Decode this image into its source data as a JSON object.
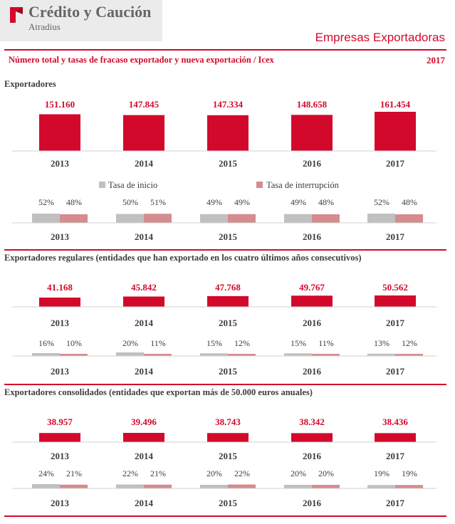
{
  "brand": {
    "name": "Crédito y Caución",
    "sub": "Atradius"
  },
  "page_title": "Empresas Exportadoras",
  "subtitle": "Número total  y tasas de fracaso exportador y nueva exportación / Icex",
  "year": "2017",
  "colors": {
    "accent": "#d3092b",
    "inicio": "#c0c0c0",
    "interrupcion": "#d68b8e",
    "text": "#3d3d3d"
  },
  "chart_data": [
    {
      "type": "bar",
      "title": "Exportadores",
      "categories": [
        "2013",
        "2014",
        "2015",
        "2016",
        "2017"
      ],
      "values": [
        151160,
        147845,
        147334,
        148658,
        161454
      ],
      "value_labels": [
        "151.160",
        "147.845",
        "147.334",
        "148.658",
        "161.454"
      ]
    },
    {
      "type": "bar",
      "categories": [
        "2013",
        "2014",
        "2015",
        "2016",
        "2017"
      ],
      "legend": "top",
      "series": [
        {
          "name": "Tasa de inicio",
          "values": [
            52,
            50,
            49,
            49,
            52
          ],
          "labels": [
            "52%",
            "50%",
            "49%",
            "49%",
            "52%"
          ]
        },
        {
          "name": "Tasa de interrupción",
          "values": [
            48,
            51,
            49,
            48,
            48
          ],
          "labels": [
            "48%",
            "51%",
            "49%",
            "48%",
            "48%"
          ]
        }
      ]
    },
    {
      "type": "bar",
      "title": "Exportadores regulares (entidades que han exportado en los cuatro últimos años consecutivos)",
      "categories": [
        "2013",
        "2014",
        "2015",
        "2016",
        "2017"
      ],
      "values": [
        41168,
        45842,
        47768,
        49767,
        50562
      ],
      "value_labels": [
        "41.168",
        "45.842",
        "47.768",
        "49.767",
        "50.562"
      ]
    },
    {
      "type": "bar",
      "categories": [
        "2013",
        "2014",
        "2015",
        "2016",
        "2017"
      ],
      "series": [
        {
          "values": [
            16,
            20,
            15,
            15,
            13
          ],
          "labels": [
            "16%",
            "20%",
            "15%",
            "15%",
            "13%"
          ]
        },
        {
          "values": [
            10,
            11,
            12,
            11,
            12
          ],
          "labels": [
            "10%",
            "11%",
            "12%",
            "11%",
            "12%"
          ]
        }
      ]
    },
    {
      "type": "bar",
      "title": "Exportadores consolidados (entidades que exportan más de 50.000 euros anuales)",
      "categories": [
        "2013",
        "2014",
        "2015",
        "2016",
        "2017"
      ],
      "values": [
        38957,
        39496,
        38743,
        38342,
        38436
      ],
      "value_labels": [
        "38.957",
        "39.496",
        "38.743",
        "38.342",
        "38.436"
      ]
    },
    {
      "type": "bar",
      "categories": [
        "2013",
        "2014",
        "2015",
        "2016",
        "2017"
      ],
      "series": [
        {
          "values": [
            24,
            22,
            20,
            20,
            19
          ],
          "labels": [
            "24%",
            "22%",
            "20%",
            "20%",
            "19%"
          ]
        },
        {
          "values": [
            21,
            21,
            22,
            20,
            19
          ],
          "labels": [
            "21%",
            "21%",
            "22%",
            "20%",
            "19%"
          ]
        }
      ]
    }
  ]
}
